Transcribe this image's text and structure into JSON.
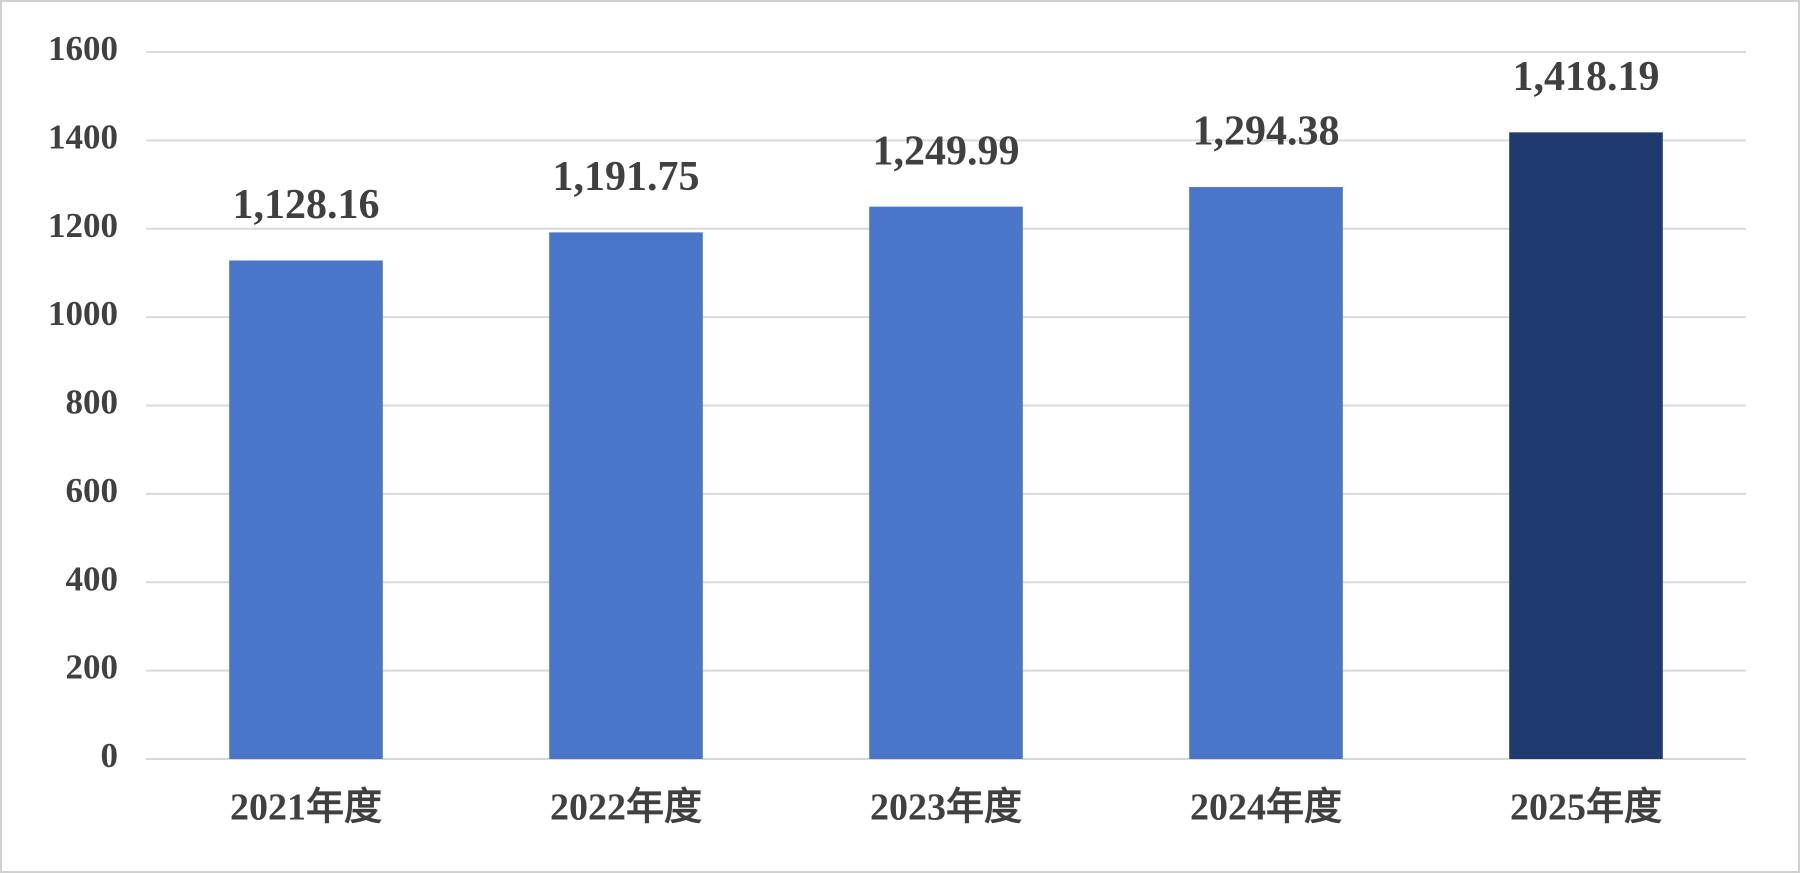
{
  "chart_data": {
    "type": "bar",
    "categories": [
      "2021年度",
      "2022年度",
      "2023年度",
      "2024年度",
      "2025年度"
    ],
    "values": [
      1128.16,
      1191.75,
      1249.99,
      1294.38,
      1418.19
    ],
    "value_labels": [
      "1,128.16",
      "1,191.75",
      "1,249.99",
      "1,294.38",
      "1,418.19"
    ],
    "colors": [
      "#4a76c9",
      "#4a76c9",
      "#4a76c9",
      "#4a76c9",
      "#1f3a6e"
    ],
    "ylim": [
      0,
      1600
    ],
    "yticks": [
      0,
      200,
      400,
      600,
      800,
      1000,
      1200,
      1400,
      1600
    ],
    "grid": true
  }
}
